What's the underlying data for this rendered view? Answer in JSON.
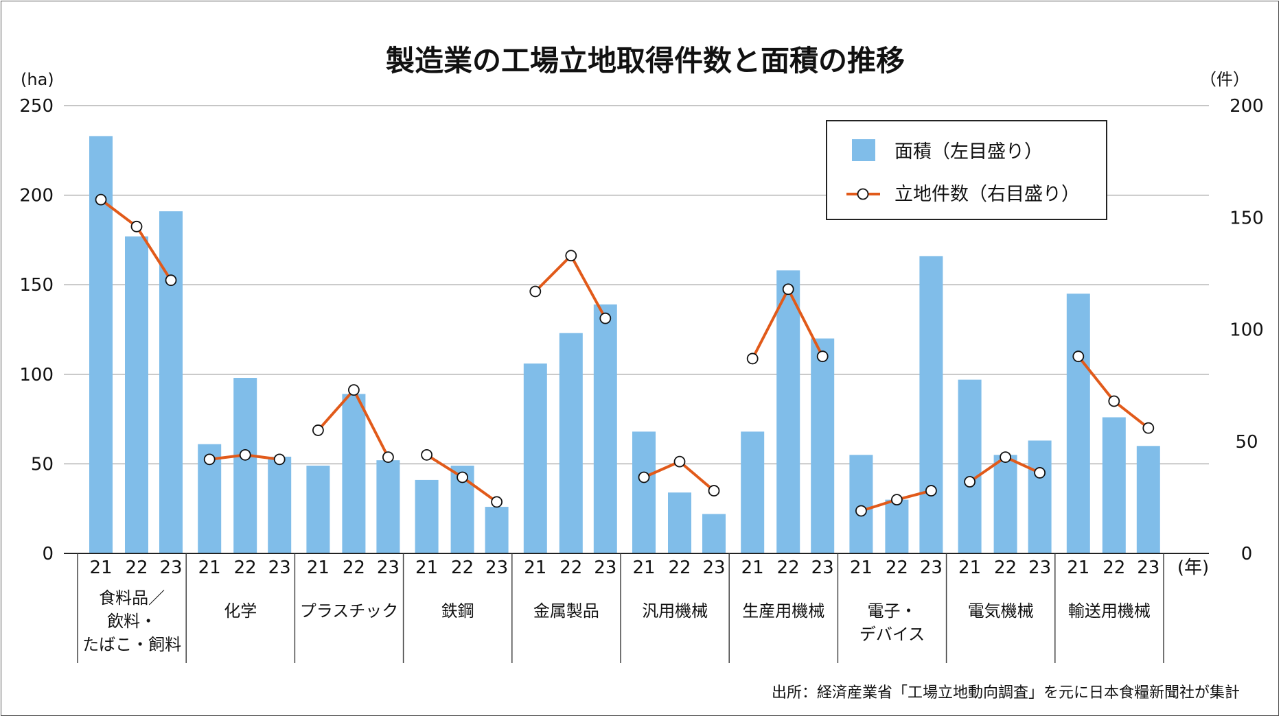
{
  "chart_data": {
    "type": "bar+line",
    "title": "製造業の工場立地取得件数と面積の推移",
    "left_unit": "(ha)",
    "right_unit": "（件）",
    "x_unit": "(年)",
    "left_ylim": [
      0,
      250
    ],
    "right_ylim": [
      0,
      200
    ],
    "left_ticks": [
      "0",
      "50",
      "100",
      "150",
      "200",
      "250"
    ],
    "right_ticks": [
      "0",
      "50",
      "100",
      "150",
      "200"
    ],
    "years": [
      "21",
      "22",
      "23"
    ],
    "categories": [
      {
        "label_lines": [
          "食料品／",
          "飲料・",
          "たばこ・飼料"
        ],
        "area": [
          233,
          177,
          191
        ],
        "count": [
          158,
          146,
          122
        ]
      },
      {
        "label_lines": [
          "化学"
        ],
        "area": [
          61,
          98,
          54
        ],
        "count": [
          42,
          44,
          42
        ]
      },
      {
        "label_lines": [
          "プラスチック"
        ],
        "area": [
          49,
          89,
          52
        ],
        "count": [
          55,
          73,
          43
        ]
      },
      {
        "label_lines": [
          "鉄鋼"
        ],
        "area": [
          41,
          49,
          26
        ],
        "count": [
          44,
          34,
          23
        ]
      },
      {
        "label_lines": [
          "金属製品"
        ],
        "area": [
          106,
          123,
          139
        ],
        "count": [
          117,
          133,
          105
        ]
      },
      {
        "label_lines": [
          "汎用機械"
        ],
        "area": [
          68,
          34,
          22
        ],
        "count": [
          34,
          41,
          28
        ]
      },
      {
        "label_lines": [
          "生産用機械"
        ],
        "area": [
          68,
          158,
          120
        ],
        "count": [
          87,
          118,
          88
        ]
      },
      {
        "label_lines": [
          "電子・",
          "デバイス"
        ],
        "area": [
          55,
          30,
          166
        ],
        "count": [
          19,
          24,
          28
        ]
      },
      {
        "label_lines": [
          "電気機械"
        ],
        "area": [
          97,
          55,
          63
        ],
        "count": [
          32,
          43,
          36
        ]
      },
      {
        "label_lines": [
          "輸送用機械"
        ],
        "area": [
          145,
          76,
          60
        ],
        "count": [
          88,
          68,
          56
        ]
      }
    ],
    "series": [
      {
        "name": "面積（左目盛り）",
        "type": "bar",
        "color": "#80bde9"
      },
      {
        "name": "立地件数（右目盛り）",
        "type": "line",
        "color": "#e15a1a"
      }
    ],
    "legend_position": "top-right",
    "grid": true
  },
  "source": "出所：経済産業省「工場立地動向調査」を元に日本食糧新聞社が集計"
}
